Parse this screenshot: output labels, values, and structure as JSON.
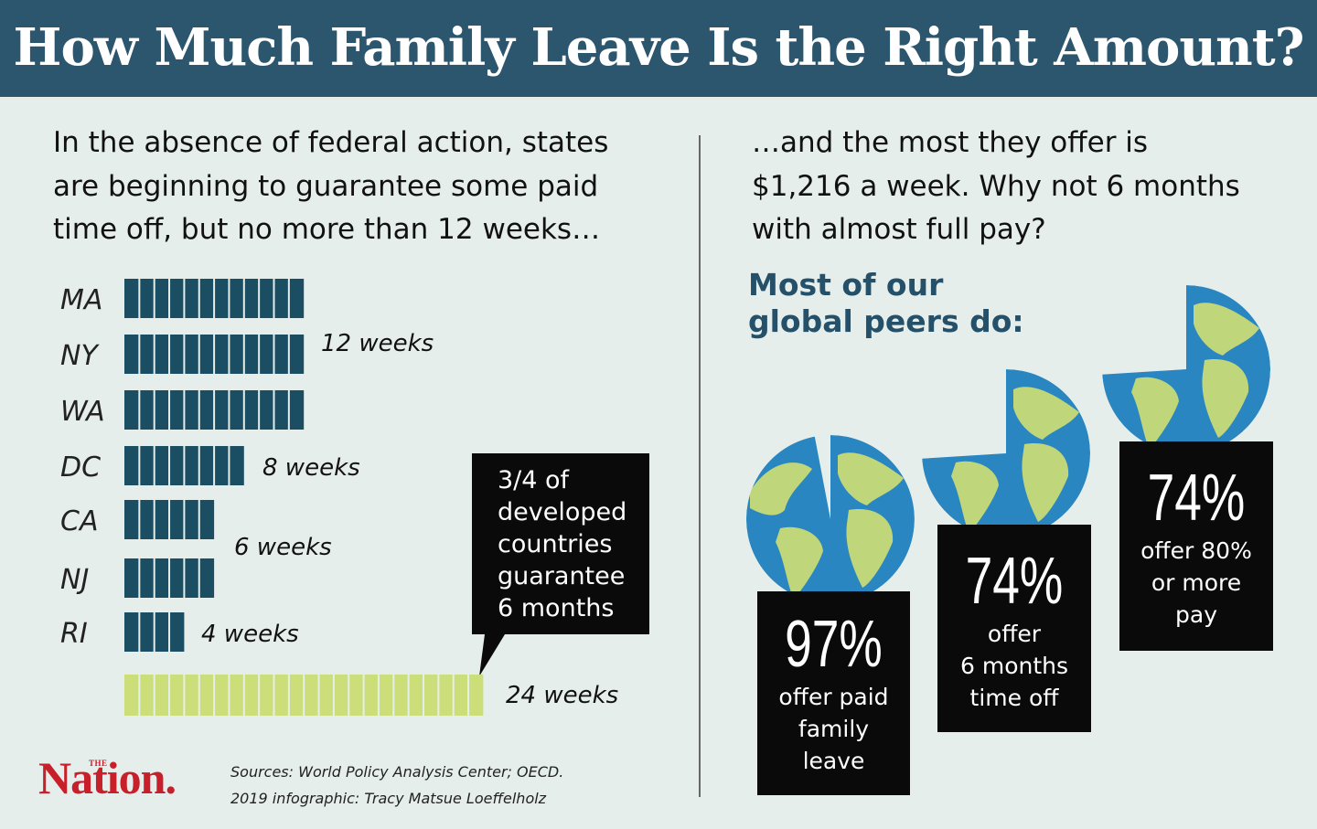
{
  "header": {
    "title": "How Much Family Leave Is the Right Amount?"
  },
  "left": {
    "intro": [
      "In the absence of federal action, states",
      "are beginning to guarantee some paid",
      "time off, but no more than 12 weeks…"
    ]
  },
  "right": {
    "intro": [
      "…and the most they offer is",
      "$1,216 a week. Why not 6 months",
      "with almost full pay?"
    ],
    "subhead": [
      "Most of our",
      "global peers do:"
    ]
  },
  "chart_data": {
    "type": "bar",
    "orientation": "horizontal",
    "unit": "weeks",
    "categories": [
      "MA",
      "NY",
      "WA",
      "DC",
      "CA",
      "NJ",
      "RI"
    ],
    "values": [
      12,
      12,
      12,
      8,
      6,
      6,
      4
    ],
    "group_labels": [
      {
        "label": "12 weeks",
        "rows": [
          "MA",
          "NY",
          "WA"
        ]
      },
      {
        "label": "8 weeks",
        "rows": [
          "DC"
        ]
      },
      {
        "label": "6 weeks",
        "rows": [
          "CA",
          "NJ"
        ]
      },
      {
        "label": "4 weeks",
        "rows": [
          "RI"
        ]
      }
    ],
    "comparison": {
      "value": 24,
      "label": "24 weeks",
      "color": "#ccde7a"
    },
    "bar_color": "#1b4d63",
    "callout": [
      "3/4 of",
      "developed",
      "countries",
      "guarantee",
      "6 months"
    ]
  },
  "stats": [
    {
      "percent": "97%",
      "lines": [
        "offer paid",
        "family",
        "leave"
      ],
      "fraction": 0.97
    },
    {
      "percent": "74%",
      "lines": [
        "offer",
        "6 months",
        "time off"
      ],
      "fraction": 0.74
    },
    {
      "percent": "74%",
      "lines": [
        "offer 80%",
        "or more",
        "pay"
      ],
      "fraction": 0.74
    }
  ],
  "footer": {
    "logo_small": "THE",
    "logo": "Nation.",
    "sources": "Sources: World Policy Analysis Center; OECD.",
    "credit": "2019 infographic: Tracy Matsue Loeffelholz"
  },
  "colors": {
    "header_bg": "#2c566e",
    "background": "#e6eeec",
    "ocean": "#2a86c0",
    "land": "#bfd67a",
    "brand_red": "#c8202a"
  }
}
